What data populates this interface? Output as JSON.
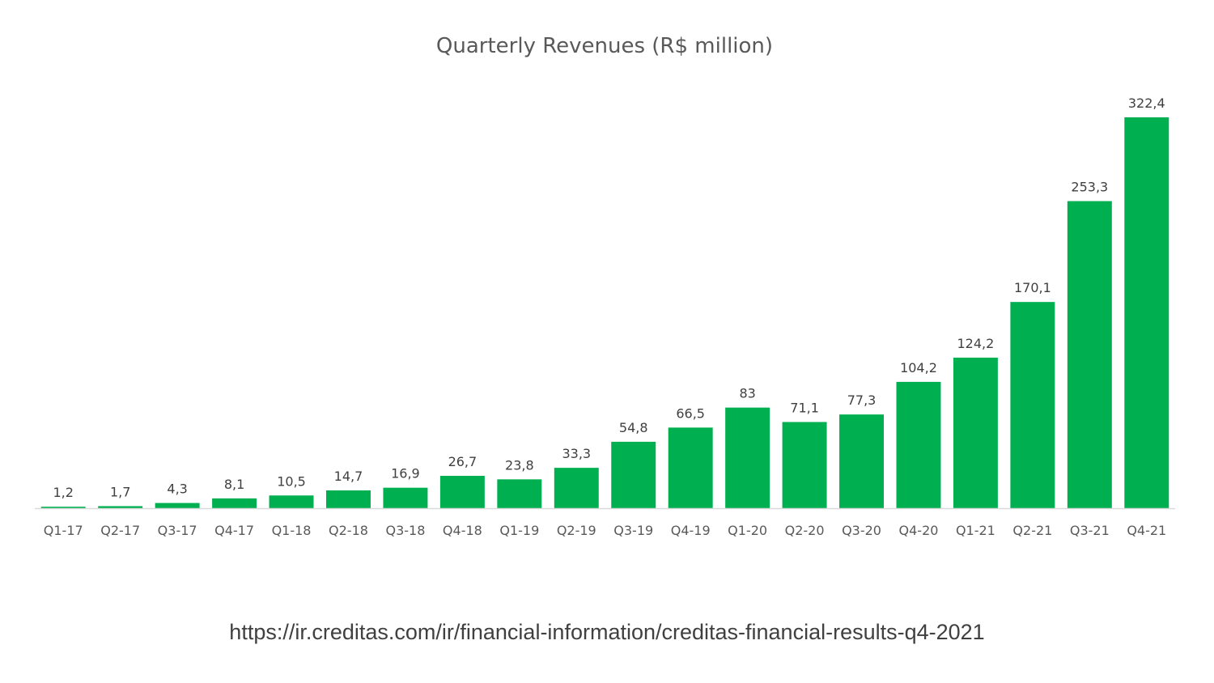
{
  "chart_data": {
    "type": "bar",
    "title": "Quarterly Revenues (R$ million)",
    "xlabel": "",
    "ylabel": "",
    "categories": [
      "Q1-17",
      "Q2-17",
      "Q3-17",
      "Q4-17",
      "Q1-18",
      "Q2-18",
      "Q3-18",
      "Q4-18",
      "Q1-19",
      "Q2-19",
      "Q3-19",
      "Q4-19",
      "Q1-20",
      "Q2-20",
      "Q3-20",
      "Q4-20",
      "Q1-21",
      "Q2-21",
      "Q3-21",
      "Q4-21"
    ],
    "values": [
      1.2,
      1.7,
      4.3,
      8.1,
      10.5,
      14.7,
      16.9,
      26.7,
      23.8,
      33.3,
      54.8,
      66.5,
      83,
      71.1,
      77.3,
      104.2,
      124.2,
      170.1,
      253.3,
      322.4
    ],
    "value_labels": [
      "1,2",
      "1,7",
      "4,3",
      "8,1",
      "10,5",
      "14,7",
      "16,9",
      "26,7",
      "23,8",
      "33,3",
      "54,8",
      "66,5",
      "83",
      "71,1",
      "77,3",
      "104,2",
      "124,2",
      "170,1",
      "253,3",
      "322,4"
    ],
    "ylim": [
      0,
      322.4
    ],
    "grid": false,
    "legend": "none",
    "bar_color": "#00b050",
    "axis_color": "#d9d9d9"
  },
  "source": {
    "url": "https://ir.creditas.com/ir/financial-information/creditas-financial-results-q4-2021"
  }
}
